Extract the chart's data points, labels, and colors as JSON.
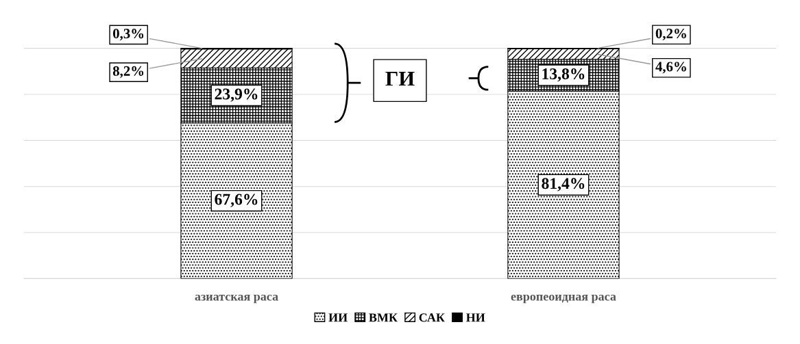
{
  "chart_data": {
    "type": "bar",
    "stacked": true,
    "categories": [
      "азиатская раса",
      "европеоидная раса"
    ],
    "series": [
      {
        "name": "ИИ",
        "color": "#000000",
        "values": [
          67.6,
          81.4
        ],
        "value_labels": [
          "67,6%",
          "81,4%"
        ]
      },
      {
        "name": "ВМК",
        "color": "#000000",
        "values": [
          23.9,
          13.8
        ],
        "value_labels": [
          "23,9%",
          "13,8%"
        ]
      },
      {
        "name": "САК",
        "color": "#000000",
        "values": [
          8.2,
          4.6
        ],
        "value_labels": [
          "8,2%",
          "4,6%"
        ]
      },
      {
        "name": "НИ",
        "color": "#000000",
        "values": [
          0.3,
          0.2
        ],
        "value_labels": [
          "0,3%",
          "0,2%"
        ]
      }
    ],
    "annotations": [
      "ГИ"
    ],
    "legend": "bottom",
    "grid": "y",
    "tick_labels": "x"
  }
}
